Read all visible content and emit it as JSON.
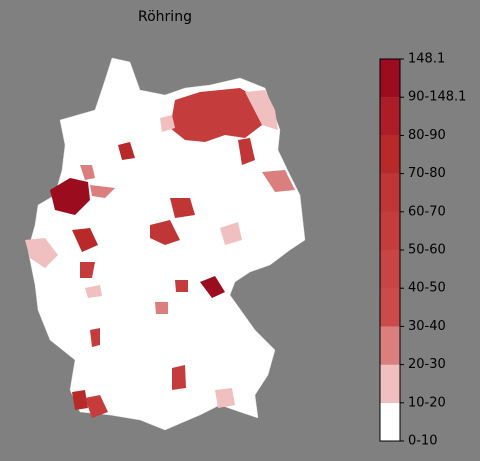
{
  "map": {
    "title": "Röhring",
    "legend": {
      "tick_labels": [
        "0-10",
        "10-20",
        "20-30",
        "30-40",
        "40-50",
        "50-60",
        "60-70",
        "70-80",
        "80-90",
        "90-148.1",
        "148.1"
      ],
      "colors": [
        "#ffffff",
        "#f0c0c0",
        "#db7e7e",
        "#cc4a4a",
        "#c94444",
        "#c43c3c",
        "#c03535",
        "#b82a2a",
        "#ad1d27",
        "#9b0d1e"
      ]
    }
  }
}
